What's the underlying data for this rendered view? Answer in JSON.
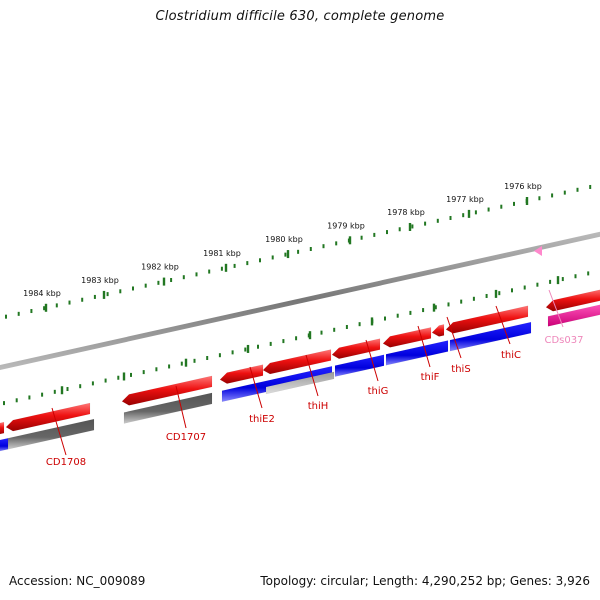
{
  "title": "Clostridium difficile 630, complete genome",
  "footer": {
    "accession": "Accession: NC_009089",
    "summary": "Topology: circular; Length: 4,290,252 bp; Genes: 3,926"
  },
  "ruler": {
    "labels": [
      "1984 kbp",
      "1983 kbp",
      "1982 kbp",
      "1981 kbp",
      "1980 kbp",
      "1979 kbp",
      "1978 kbp",
      "1977 kbp",
      "1976 kbp"
    ]
  },
  "colors": {
    "forward_cds": "#ee1111",
    "reverse_cds": "#1111dd",
    "grey_feature": "#666666",
    "pink_feature": "#ee2299",
    "label_red": "#cc0000",
    "label_pink": "#ee88bb",
    "ruler_tick": "#227722",
    "backbone": "#888888"
  },
  "gene_labels": [
    {
      "id": "cd1708",
      "text": "CD1708",
      "color_key": "label_red"
    },
    {
      "id": "cd1707",
      "text": "CD1707",
      "color_key": "label_red"
    },
    {
      "id": "thie2",
      "text": "thiE2",
      "color_key": "label_red"
    },
    {
      "id": "thih",
      "text": "thiH",
      "color_key": "label_red"
    },
    {
      "id": "thig",
      "text": "thiG",
      "color_key": "label_red"
    },
    {
      "id": "thif",
      "text": "thiF",
      "color_key": "label_red"
    },
    {
      "id": "this",
      "text": "thiS",
      "color_key": "label_red"
    },
    {
      "id": "thic",
      "text": "thiC",
      "color_key": "label_red"
    },
    {
      "id": "cds037",
      "text": "CDs037",
      "color_key": "label_pink"
    }
  ]
}
